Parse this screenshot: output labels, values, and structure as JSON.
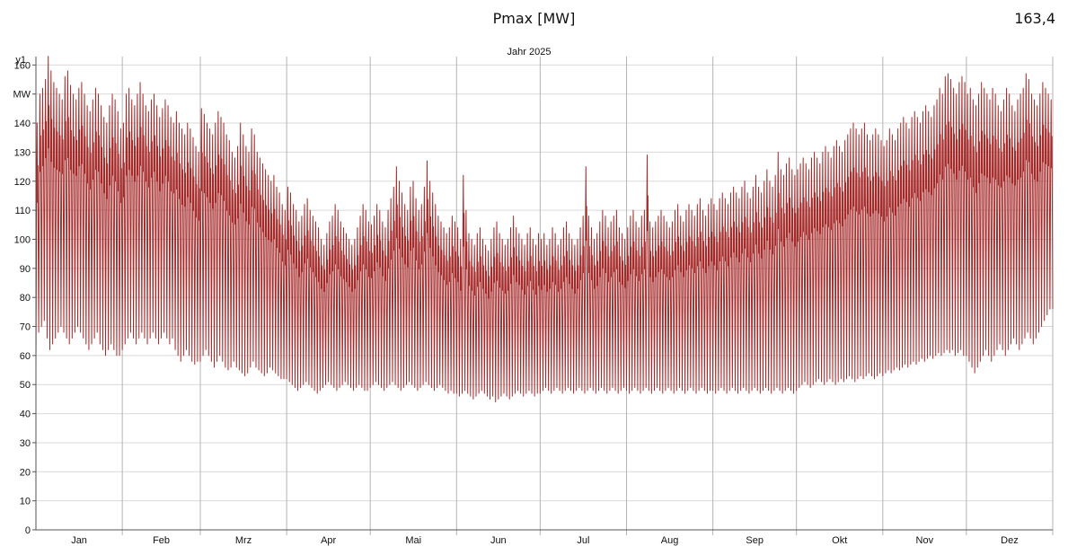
{
  "header": {
    "title": "Pmax [MW]",
    "max_value": "163,4"
  },
  "colors": {
    "series": "#a52a2a",
    "grid": "#d9d9d9",
    "month_line": "#b3b3b3",
    "axis": "#555555"
  },
  "chart_data": {
    "type": "line",
    "title": "Jahr 2025",
    "y_axis_name": "y1",
    "y_unit_label": "MW",
    "ylim": [
      0,
      170
    ],
    "y_ticks": [
      0,
      10,
      20,
      30,
      40,
      50,
      60,
      70,
      80,
      90,
      100,
      110,
      120,
      130,
      140,
      150,
      160
    ],
    "y_unit_at": 150,
    "grid": "horizontal",
    "months": [
      "Jan",
      "Feb",
      "Mrz",
      "Apr",
      "Mai",
      "Jun",
      "Jul",
      "Aug",
      "Sep",
      "Okt",
      "Nov",
      "Dez"
    ],
    "month_days": [
      31,
      28,
      31,
      30,
      31,
      30,
      31,
      31,
      30,
      31,
      30,
      31
    ],
    "series": [
      {
        "color": "#a52a2a",
        "daily_max_by_month": [
          [
            140,
            150,
            152,
            155,
            163,
            158,
            154,
            152,
            150,
            148,
            156,
            158,
            153,
            150,
            148,
            152,
            154,
            150,
            146,
            144,
            148,
            152,
            150,
            146,
            142,
            140,
            146,
            150,
            148,
            144,
            138
          ],
          [
            140,
            150,
            152,
            148,
            146,
            150,
            154,
            150,
            146,
            144,
            148,
            150,
            146,
            142,
            145,
            148,
            146,
            142,
            140,
            144,
            140,
            138,
            136,
            140,
            138,
            135,
            132,
            130
          ],
          [
            145,
            143,
            140,
            138,
            136,
            140,
            144,
            142,
            140,
            136,
            134,
            130,
            128,
            132,
            140,
            136,
            132,
            130,
            138,
            136,
            130,
            128,
            126,
            124,
            122,
            120,
            122,
            118,
            116,
            112,
            110
          ],
          [
            118,
            116,
            112,
            110,
            106,
            108,
            112,
            114,
            110,
            108,
            106,
            104,
            100,
            98,
            102,
            106,
            108,
            112,
            110,
            106,
            104,
            102,
            100,
            98,
            100,
            104,
            108,
            112,
            110,
            106
          ],
          [
            105,
            108,
            112,
            110,
            106,
            104,
            110,
            114,
            118,
            125,
            120,
            116,
            112,
            110,
            118,
            120,
            114,
            110,
            112,
            118,
            127,
            120,
            116,
            112,
            108,
            106,
            104,
            102,
            104,
            108,
            106
          ],
          [
            104,
            100,
            122,
            110,
            102,
            100,
            98,
            102,
            104,
            100,
            98,
            96,
            100,
            104,
            106,
            102,
            100,
            98,
            100,
            104,
            108,
            104,
            102,
            100,
            98,
            102,
            104,
            100,
            98,
            102
          ],
          [
            100,
            102,
            98,
            100,
            104,
            102,
            98,
            100,
            104,
            106,
            102,
            100,
            98,
            100,
            104,
            108,
            125,
            108,
            104,
            100,
            102,
            106,
            110,
            108,
            104,
            106,
            108,
            110,
            104,
            102,
            100
          ],
          [
            104,
            108,
            110,
            106,
            104,
            108,
            110,
            129,
            106,
            104,
            106,
            108,
            110,
            108,
            106,
            104,
            106,
            110,
            112,
            108,
            106,
            110,
            112,
            110,
            108,
            112,
            114,
            110,
            108,
            112,
            114
          ],
          [
            112,
            110,
            114,
            116,
            114,
            112,
            116,
            118,
            116,
            114,
            118,
            120,
            116,
            114,
            118,
            122,
            118,
            116,
            120,
            124,
            120,
            118,
            122,
            130,
            124,
            122,
            126,
            128,
            124,
            122
          ],
          [
            124,
            126,
            128,
            126,
            124,
            128,
            130,
            128,
            126,
            130,
            132,
            130,
            128,
            132,
            134,
            132,
            130,
            134,
            136,
            138,
            140,
            138,
            136,
            138,
            140,
            136,
            134,
            136,
            138,
            136,
            134
          ],
          [
            132,
            134,
            138,
            136,
            134,
            138,
            140,
            142,
            140,
            138,
            142,
            144,
            142,
            140,
            144,
            146,
            144,
            142,
            146,
            148,
            152,
            150,
            156,
            157,
            155,
            152,
            150,
            154,
            156,
            154
          ],
          [
            150,
            152,
            148,
            146,
            150,
            154,
            152,
            150,
            148,
            152,
            150,
            146,
            144,
            148,
            152,
            150,
            146,
            144,
            148,
            150,
            152,
            157,
            155,
            150,
            148,
            146,
            150,
            154,
            152,
            150,
            148
          ]
        ],
        "daily_min_by_month": [
          [
            56,
            68,
            70,
            72,
            66,
            62,
            64,
            66,
            68,
            70,
            68,
            66,
            64,
            66,
            68,
            70,
            68,
            66,
            64,
            62,
            64,
            66,
            68,
            64,
            62,
            60,
            62,
            64,
            62,
            60,
            60
          ],
          [
            62,
            64,
            66,
            68,
            66,
            64,
            66,
            68,
            66,
            64,
            66,
            68,
            66,
            64,
            66,
            68,
            66,
            64,
            66,
            62,
            60,
            58,
            60,
            62,
            60,
            58,
            57,
            58
          ],
          [
            58,
            60,
            62,
            60,
            58,
            56,
            58,
            60,
            58,
            56,
            55,
            56,
            58,
            56,
            55,
            54,
            53,
            54,
            56,
            58,
            56,
            55,
            54,
            53,
            54,
            56,
            55,
            54,
            53,
            52,
            52
          ],
          [
            52,
            51,
            50,
            49,
            48,
            49,
            50,
            51,
            50,
            49,
            48,
            47,
            48,
            49,
            50,
            51,
            50,
            49,
            48,
            49,
            50,
            51,
            50,
            49,
            48,
            49,
            50,
            49,
            48,
            48
          ],
          [
            49,
            50,
            51,
            50,
            49,
            48,
            49,
            50,
            51,
            50,
            49,
            48,
            49,
            50,
            51,
            50,
            49,
            48,
            49,
            50,
            51,
            50,
            49,
            48,
            49,
            50,
            49,
            48,
            47,
            48,
            47
          ],
          [
            47,
            46,
            47,
            48,
            47,
            46,
            45,
            46,
            47,
            48,
            47,
            46,
            45,
            46,
            44,
            45,
            46,
            47,
            46,
            45,
            46,
            47,
            48,
            47,
            46,
            47,
            48,
            47,
            46,
            47
          ],
          [
            47,
            48,
            49,
            48,
            47,
            48,
            49,
            48,
            47,
            48,
            49,
            48,
            47,
            48,
            49,
            48,
            47,
            48,
            49,
            48,
            47,
            48,
            49,
            48,
            47,
            48,
            49,
            48,
            47,
            48,
            49
          ],
          [
            48,
            47,
            48,
            49,
            48,
            47,
            48,
            49,
            48,
            47,
            48,
            49,
            48,
            47,
            48,
            49,
            48,
            47,
            48,
            49,
            48,
            47,
            48,
            49,
            48,
            47,
            48,
            49,
            48,
            47,
            48
          ],
          [
            48,
            47,
            48,
            49,
            48,
            47,
            48,
            49,
            48,
            47,
            48,
            49,
            48,
            47,
            48,
            49,
            48,
            47,
            48,
            49,
            48,
            47,
            48,
            49,
            48,
            47,
            48,
            49,
            48,
            47
          ],
          [
            48,
            49,
            50,
            51,
            50,
            49,
            50,
            51,
            52,
            51,
            50,
            51,
            52,
            51,
            50,
            51,
            52,
            51,
            52,
            53,
            52,
            51,
            52,
            53,
            52,
            53,
            54,
            53,
            52,
            53,
            54
          ],
          [
            53,
            54,
            55,
            54,
            55,
            56,
            55,
            56,
            57,
            56,
            57,
            58,
            57,
            58,
            59,
            58,
            59,
            60,
            59,
            60,
            61,
            60,
            61,
            62,
            61,
            62,
            60,
            61,
            62,
            60
          ],
          [
            60,
            58,
            56,
            54,
            56,
            58,
            60,
            62,
            60,
            58,
            60,
            62,
            64,
            62,
            60,
            62,
            64,
            66,
            64,
            62,
            64,
            66,
            68,
            66,
            64,
            66,
            68,
            70,
            72,
            74,
            76
          ]
        ]
      }
    ]
  }
}
